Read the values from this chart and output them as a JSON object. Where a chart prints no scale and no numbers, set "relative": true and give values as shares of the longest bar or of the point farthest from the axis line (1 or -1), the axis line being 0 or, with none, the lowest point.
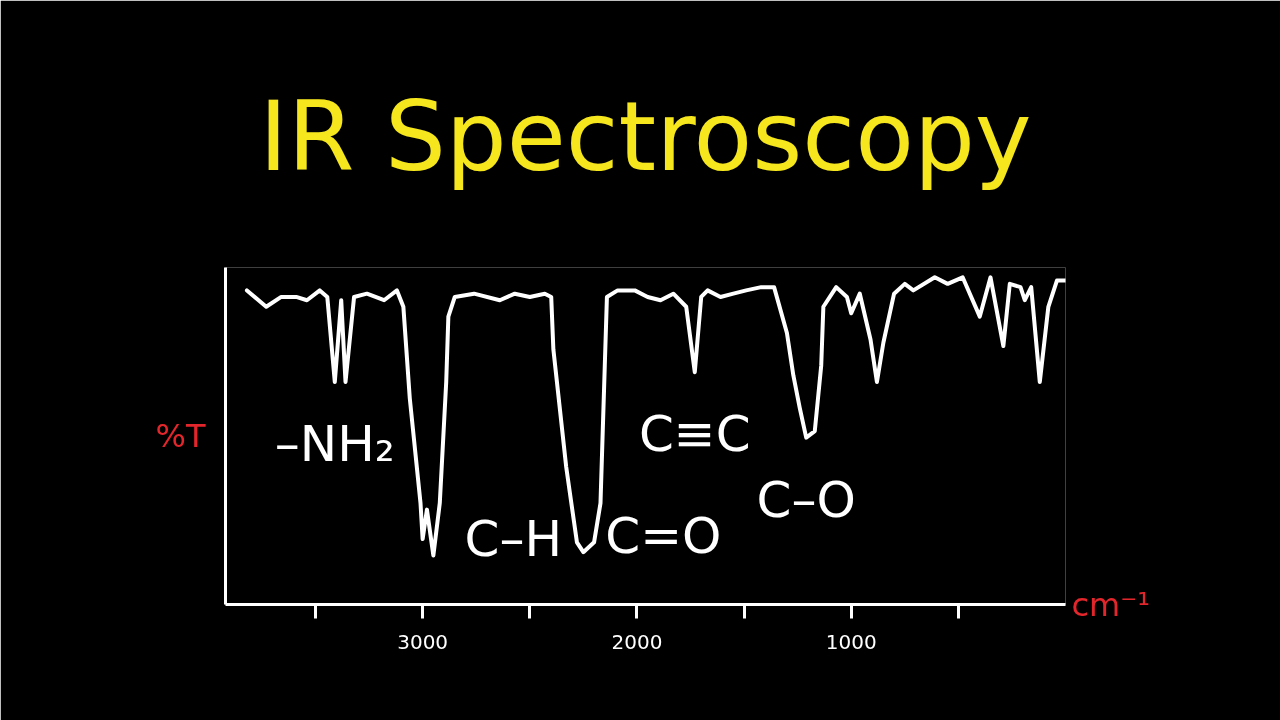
{
  "chart_data": {
    "type": "line",
    "title": "IR Spectroscopy",
    "xlabel": "cm⁻¹",
    "ylabel": "%T",
    "relative": true,
    "tick_labels": "x",
    "grid": false,
    "xlim": [
      3920,
      0
    ],
    "xticks": [
      {
        "value": 3500,
        "label": null
      },
      3000,
      {
        "value": 2500,
        "label": null
      },
      2000,
      {
        "value": 1500,
        "label": null
      },
      1000,
      {
        "value": 500,
        "label": null
      }
    ],
    "x": [
      3820,
      3730,
      3660,
      3590,
      3540,
      3480,
      3445,
      3410,
      3380,
      3360,
      3320,
      3260,
      3180,
      3120,
      3090,
      3060,
      3010,
      3000,
      2980,
      2950,
      2920,
      2890,
      2880,
      2850,
      2760,
      2640,
      2570,
      2500,
      2430,
      2400,
      2390,
      2330,
      2280,
      2250,
      2200,
      2170,
      2150,
      2140,
      2090,
      2010,
      1950,
      1890,
      1830,
      1770,
      1730,
      1700,
      1670,
      1610,
      1550,
      1490,
      1420,
      1360,
      1300,
      1270,
      1240,
      1210,
      1170,
      1140,
      1130,
      1070,
      1020,
      1000,
      960,
      910,
      880,
      850,
      800,
      750,
      710,
      610,
      550,
      480,
      400,
      350,
      290,
      260,
      210,
      190,
      160,
      120,
      80,
      40,
      0
    ],
    "series": [
      {
        "color": "#ffffff",
        "values": [
          0.96,
          0.91,
          0.94,
          0.94,
          0.93,
          0.96,
          0.94,
          0.68,
          0.93,
          0.68,
          0.94,
          0.95,
          0.93,
          0.96,
          0.91,
          0.63,
          0.31,
          0.2,
          0.29,
          0.15,
          0.31,
          0.68,
          0.88,
          0.94,
          0.95,
          0.93,
          0.95,
          0.94,
          0.95,
          0.94,
          0.78,
          0.42,
          0.19,
          0.16,
          0.19,
          0.31,
          0.73,
          0.94,
          0.96,
          0.96,
          0.94,
          0.93,
          0.95,
          0.91,
          0.71,
          0.94,
          0.96,
          0.94,
          0.95,
          0.96,
          0.97,
          0.97,
          0.83,
          0.7,
          0.6,
          0.51,
          0.53,
          0.73,
          0.91,
          0.97,
          0.94,
          0.89,
          0.95,
          0.81,
          0.68,
          0.8,
          0.95,
          0.98,
          0.96,
          1.0,
          0.98,
          1.0,
          0.88,
          1.0,
          0.79,
          0.98,
          0.97,
          0.93,
          0.97,
          0.68,
          0.91,
          0.99,
          0.99
        ]
      }
    ],
    "annotations": [
      {
        "text": "–NH₂",
        "x": 3410,
        "y": 0.68
      },
      {
        "text": "C–H",
        "x": 2950,
        "y": 0.15
      },
      {
        "text": "C=O",
        "x": 2250,
        "y": 0.16
      },
      {
        "text": "C≡C",
        "x": 1730,
        "y": 0.71
      },
      {
        "text": "C–O",
        "x": 1210,
        "y": 0.51
      }
    ]
  }
}
